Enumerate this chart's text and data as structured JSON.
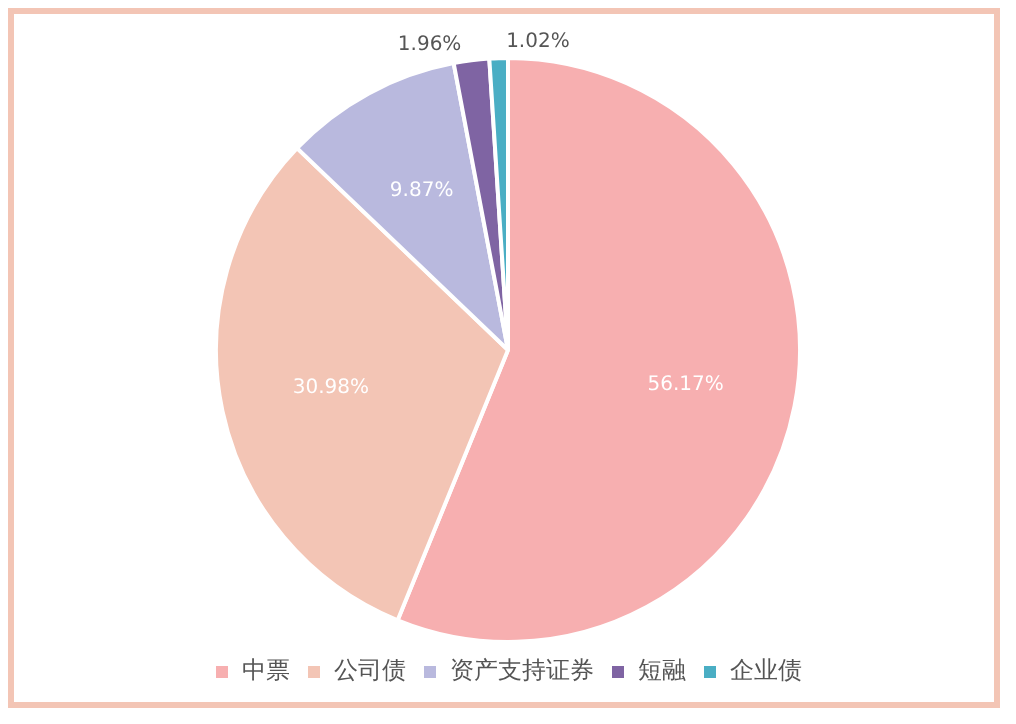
{
  "chart_data": {
    "type": "pie",
    "categories": [
      "中票",
      "公司债",
      "资产支持证券",
      "短融",
      "企业债"
    ],
    "values": [
      56.17,
      30.98,
      9.87,
      1.96,
      1.02
    ],
    "colors": [
      "#f7afb0",
      "#f3c5b5",
      "#b9b9de",
      "#7f64a3",
      "#4aaec4"
    ],
    "value_labels": [
      "56.17%",
      "30.98%",
      "9.87%",
      "1.96%",
      "1.02%"
    ],
    "legend": "bottom"
  }
}
